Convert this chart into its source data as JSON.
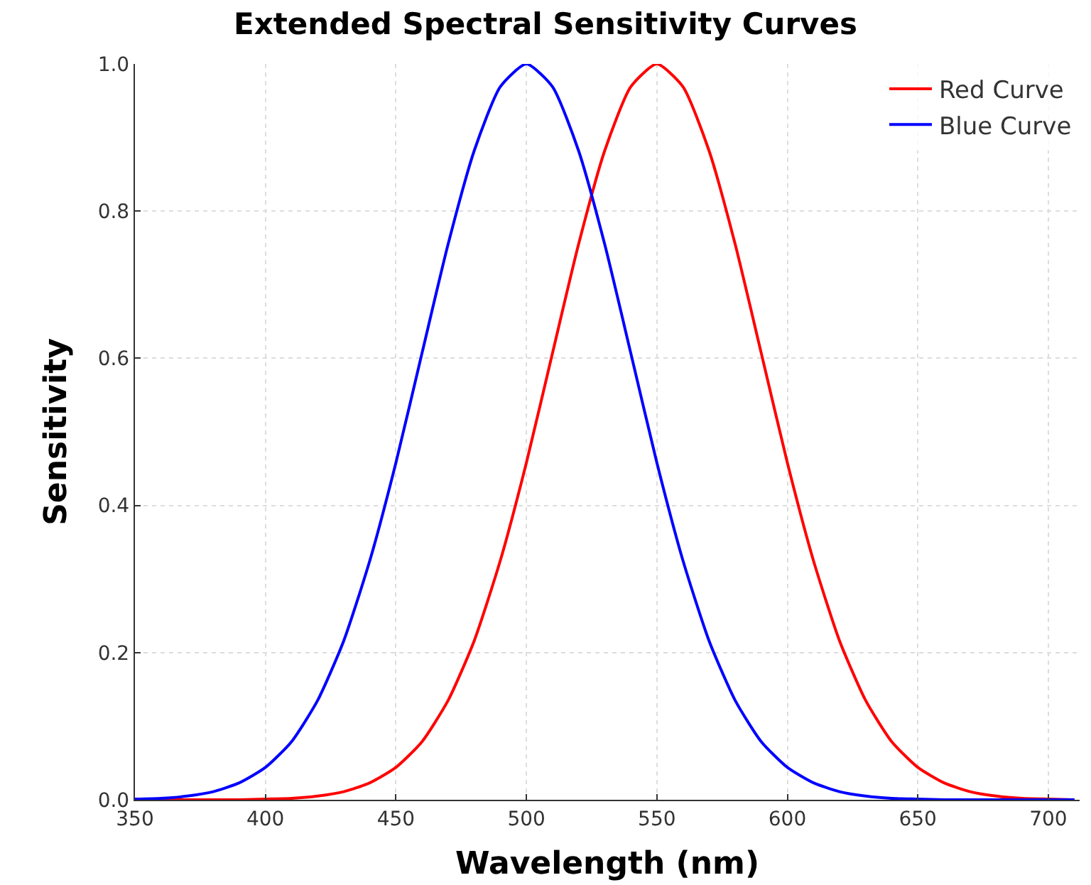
{
  "chart_data": {
    "type": "line",
    "title": "Extended Spectral Sensitivity Curves",
    "xlabel": "Wavelength (nm)",
    "ylabel": "Sensitivity",
    "x": [
      350,
      360,
      370,
      380,
      390,
      400,
      410,
      420,
      430,
      440,
      450,
      460,
      470,
      480,
      490,
      500,
      510,
      520,
      530,
      540,
      550,
      560,
      570,
      580,
      590,
      600,
      610,
      620,
      630,
      640,
      650,
      660,
      670,
      680,
      690,
      700,
      710
    ],
    "series": [
      {
        "name": "Red Curve",
        "color": "#ff0000",
        "values": [
          0,
          0,
          0,
          0,
          0,
          0.001,
          0.002,
          0.005,
          0.011,
          0.023,
          0.044,
          0.079,
          0.135,
          0.216,
          0.325,
          0.458,
          0.607,
          0.755,
          0.882,
          0.969,
          1,
          0.969,
          0.882,
          0.755,
          0.607,
          0.458,
          0.325,
          0.216,
          0.135,
          0.079,
          0.044,
          0.023,
          0.011,
          0.005,
          0.002,
          0.001,
          0
        ]
      },
      {
        "name": "Blue Curve",
        "color": "#0000ff",
        "values": [
          0.001,
          0.002,
          0.005,
          0.011,
          0.023,
          0.044,
          0.079,
          0.135,
          0.216,
          0.325,
          0.458,
          0.607,
          0.755,
          0.882,
          0.969,
          1,
          0.969,
          0.882,
          0.755,
          0.607,
          0.458,
          0.325,
          0.216,
          0.135,
          0.079,
          0.044,
          0.023,
          0.011,
          0.005,
          0.002,
          0.001,
          0,
          0,
          0,
          0,
          0,
          0
        ]
      }
    ],
    "xlim": [
      350,
      712
    ],
    "xticks": [
      350,
      400,
      450,
      500,
      550,
      600,
      650,
      700
    ],
    "ylim": [
      0,
      1.0
    ],
    "yticks": [
      {
        "value": 0,
        "label": "0.0"
      },
      {
        "value": 0.2,
        "label": "0.2"
      },
      {
        "value": 0.4,
        "label": "0.4"
      },
      {
        "value": 0.6,
        "label": "0.6"
      },
      {
        "value": 0.8,
        "label": "0.8"
      },
      {
        "value": 1.0,
        "label": "1.0"
      }
    ],
    "grid": true,
    "legend": "top right",
    "marker": "none",
    "line_style": "solid"
  }
}
